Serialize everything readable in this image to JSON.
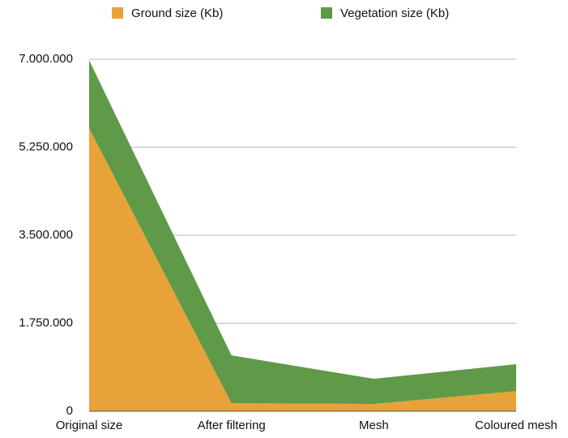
{
  "chart_data": {
    "type": "stacked-area",
    "categories": [
      "Original size",
      "After filtering",
      "Mesh",
      "Coloured mesh"
    ],
    "series": [
      {
        "name": "Ground size (Kb)",
        "color": "#e8a23a",
        "values": [
          5630000,
          160000,
          145000,
          400000
        ]
      },
      {
        "name": "Vegetation size (Kb)",
        "color": "#5e9a48",
        "values": [
          1350000,
          950000,
          500000,
          535000
        ]
      }
    ],
    "ylim": [
      0,
      7000000
    ],
    "yticks": [
      0,
      {
        "value": 1750000,
        "label": "1.750.000"
      },
      {
        "value": 3500000,
        "label": "3.500.000"
      },
      {
        "value": 5250000,
        "label": "5.250.000"
      },
      {
        "value": 7000000,
        "label": "7.000.000"
      }
    ],
    "grid": true
  }
}
